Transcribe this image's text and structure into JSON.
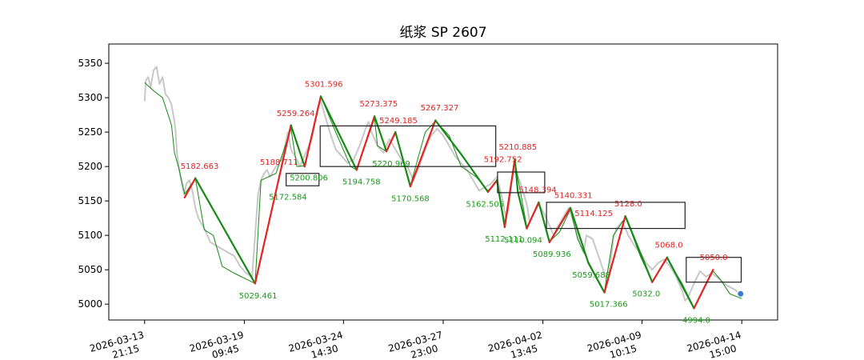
{
  "chart_data": {
    "type": "line",
    "title": "纸浆 SP 2607",
    "ylim": [
      4977,
      5378
    ],
    "yticks": [
      5000,
      5050,
      5100,
      5150,
      5200,
      5250,
      5300,
      5350
    ],
    "xlim": [
      -0.06,
      1.06
    ],
    "xticks": [
      {
        "pos": 0.0,
        "label": [
          "2026-03-13",
          "21:15"
        ]
      },
      {
        "pos": 0.167,
        "label": [
          "2026-03-19",
          "09:45"
        ]
      },
      {
        "pos": 0.333,
        "label": [
          "2026-03-24",
          "14:30"
        ]
      },
      {
        "pos": 0.5,
        "label": [
          "2026-03-27",
          "23:00"
        ]
      },
      {
        "pos": 0.667,
        "label": [
          "2026-04-02",
          "13:45"
        ]
      },
      {
        "pos": 0.833,
        "label": [
          "2026-04-09",
          "10:15"
        ]
      },
      {
        "pos": 1.0,
        "label": [
          "2026-04-14",
          "15:00"
        ]
      }
    ],
    "price_path": [
      [
        0.0,
        5295
      ],
      [
        0.002,
        5325
      ],
      [
        0.006,
        5330
      ],
      [
        0.01,
        5315
      ],
      [
        0.015,
        5340
      ],
      [
        0.02,
        5345
      ],
      [
        0.025,
        5320
      ],
      [
        0.03,
        5330
      ],
      [
        0.035,
        5305
      ],
      [
        0.04,
        5300
      ],
      [
        0.045,
        5290
      ],
      [
        0.05,
        5265
      ],
      [
        0.052,
        5250
      ],
      [
        0.054,
        5220
      ],
      [
        0.058,
        5195
      ],
      [
        0.062,
        5175
      ],
      [
        0.066,
        5160
      ],
      [
        0.07,
        5175
      ],
      [
        0.075,
        5180
      ],
      [
        0.08,
        5165
      ],
      [
        0.085,
        5140
      ],
      [
        0.09,
        5125
      ],
      [
        0.1,
        5110
      ],
      [
        0.11,
        5090
      ],
      [
        0.12,
        5085
      ],
      [
        0.13,
        5080
      ],
      [
        0.14,
        5075
      ],
      [
        0.15,
        5070
      ],
      [
        0.16,
        5055
      ],
      [
        0.17,
        5045
      ],
      [
        0.18,
        5040
      ],
      [
        0.185,
        5100
      ],
      [
        0.19,
        5160
      ],
      [
        0.195,
        5180
      ],
      [
        0.2,
        5190
      ],
      [
        0.205,
        5195
      ],
      [
        0.21,
        5185
      ],
      [
        0.22,
        5200
      ],
      [
        0.23,
        5210
      ],
      [
        0.235,
        5230
      ],
      [
        0.24,
        5250
      ],
      [
        0.245,
        5225
      ],
      [
        0.255,
        5210
      ],
      [
        0.26,
        5200
      ],
      [
        0.27,
        5220
      ],
      [
        0.28,
        5240
      ],
      [
        0.29,
        5285
      ],
      [
        0.295,
        5295
      ],
      [
        0.3,
        5280
      ],
      [
        0.31,
        5250
      ],
      [
        0.32,
        5225
      ],
      [
        0.33,
        5215
      ],
      [
        0.34,
        5205
      ],
      [
        0.35,
        5210
      ],
      [
        0.36,
        5230
      ],
      [
        0.37,
        5255
      ],
      [
        0.375,
        5265
      ],
      [
        0.38,
        5250
      ],
      [
        0.39,
        5230
      ],
      [
        0.4,
        5220
      ],
      [
        0.41,
        5240
      ],
      [
        0.42,
        5225
      ],
      [
        0.43,
        5210
      ],
      [
        0.44,
        5200
      ],
      [
        0.45,
        5180
      ],
      [
        0.46,
        5200
      ],
      [
        0.47,
        5225
      ],
      [
        0.48,
        5245
      ],
      [
        0.49,
        5255
      ],
      [
        0.5,
        5245
      ],
      [
        0.51,
        5230
      ],
      [
        0.52,
        5215
      ],
      [
        0.53,
        5205
      ],
      [
        0.54,
        5195
      ],
      [
        0.55,
        5180
      ],
      [
        0.56,
        5165
      ],
      [
        0.57,
        5170
      ],
      [
        0.58,
        5175
      ],
      [
        0.59,
        5185
      ],
      [
        0.6,
        5150
      ],
      [
        0.605,
        5125
      ],
      [
        0.61,
        5140
      ],
      [
        0.615,
        5180
      ],
      [
        0.62,
        5195
      ],
      [
        0.63,
        5175
      ],
      [
        0.64,
        5145
      ],
      [
        0.645,
        5120
      ],
      [
        0.65,
        5130
      ],
      [
        0.66,
        5145
      ],
      [
        0.67,
        5130
      ],
      [
        0.68,
        5110
      ],
      [
        0.685,
        5100
      ],
      [
        0.69,
        5110
      ],
      [
        0.7,
        5125
      ],
      [
        0.71,
        5140
      ],
      [
        0.72,
        5115
      ],
      [
        0.73,
        5085
      ],
      [
        0.735,
        5075
      ],
      [
        0.74,
        5100
      ],
      [
        0.75,
        5095
      ],
      [
        0.76,
        5070
      ],
      [
        0.77,
        5045
      ],
      [
        0.775,
        5030
      ],
      [
        0.78,
        5060
      ],
      [
        0.785,
        5095
      ],
      [
        0.79,
        5110
      ],
      [
        0.8,
        5120
      ],
      [
        0.81,
        5100
      ],
      [
        0.82,
        5085
      ],
      [
        0.83,
        5075
      ],
      [
        0.84,
        5060
      ],
      [
        0.85,
        5050
      ],
      [
        0.86,
        5060
      ],
      [
        0.87,
        5065
      ],
      [
        0.88,
        5055
      ],
      [
        0.89,
        5040
      ],
      [
        0.9,
        5020
      ],
      [
        0.905,
        5005
      ],
      [
        0.91,
        5010
      ],
      [
        0.92,
        5030
      ],
      [
        0.93,
        5048
      ],
      [
        0.94,
        5040
      ],
      [
        0.95,
        5045
      ],
      [
        0.96,
        5038
      ],
      [
        0.97,
        5030
      ],
      [
        0.98,
        5025
      ],
      [
        0.99,
        5020
      ],
      [
        1.0,
        5012
      ]
    ],
    "zigzag": [
      {
        "x": 0.067,
        "y": 5155
      },
      {
        "x": 0.085,
        "y": 5183
      },
      {
        "x": 0.185,
        "y": 5030
      },
      {
        "x": 0.245,
        "y": 5260
      },
      {
        "x": 0.268,
        "y": 5200
      },
      {
        "x": 0.295,
        "y": 5302
      },
      {
        "x": 0.355,
        "y": 5195
      },
      {
        "x": 0.385,
        "y": 5273
      },
      {
        "x": 0.405,
        "y": 5222
      },
      {
        "x": 0.42,
        "y": 5250
      },
      {
        "x": 0.445,
        "y": 5171
      },
      {
        "x": 0.487,
        "y": 5267
      },
      {
        "x": 0.53,
        "y": 5218
      },
      {
        "x": 0.575,
        "y": 5163
      },
      {
        "x": 0.59,
        "y": 5180
      },
      {
        "x": 0.603,
        "y": 5112
      },
      {
        "x": 0.62,
        "y": 5211
      },
      {
        "x": 0.625,
        "y": 5163
      },
      {
        "x": 0.64,
        "y": 5110
      },
      {
        "x": 0.66,
        "y": 5148
      },
      {
        "x": 0.678,
        "y": 5090
      },
      {
        "x": 0.713,
        "y": 5140
      },
      {
        "x": 0.743,
        "y": 5060
      },
      {
        "x": 0.77,
        "y": 5017
      },
      {
        "x": 0.805,
        "y": 5128
      },
      {
        "x": 0.85,
        "y": 5032
      },
      {
        "x": 0.875,
        "y": 5068
      },
      {
        "x": 0.92,
        "y": 4994
      },
      {
        "x": 0.952,
        "y": 5050
      }
    ],
    "trend_line": [
      [
        0.0,
        5322
      ],
      [
        0.015,
        5310
      ],
      [
        0.03,
        5300
      ],
      [
        0.045,
        5260
      ],
      [
        0.05,
        5220
      ],
      [
        0.058,
        5195
      ],
      [
        0.067,
        5160
      ],
      [
        0.085,
        5183
      ],
      [
        0.1,
        5108
      ],
      [
        0.115,
        5100
      ],
      [
        0.13,
        5055
      ],
      [
        0.15,
        5045
      ],
      [
        0.185,
        5030
      ],
      [
        0.195,
        5180
      ],
      [
        0.22,
        5190
      ],
      [
        0.245,
        5255
      ],
      [
        0.255,
        5200
      ],
      [
        0.268,
        5201
      ],
      [
        0.295,
        5302
      ],
      [
        0.32,
        5250
      ],
      [
        0.345,
        5200
      ],
      [
        0.355,
        5195
      ],
      [
        0.385,
        5270
      ],
      [
        0.39,
        5230
      ],
      [
        0.405,
        5222
      ],
      [
        0.42,
        5248
      ],
      [
        0.445,
        5172
      ],
      [
        0.47,
        5250
      ],
      [
        0.487,
        5266
      ],
      [
        0.51,
        5245
      ],
      [
        0.53,
        5200
      ],
      [
        0.555,
        5185
      ],
      [
        0.575,
        5165
      ],
      [
        0.59,
        5178
      ],
      [
        0.603,
        5118
      ],
      [
        0.62,
        5208
      ],
      [
        0.64,
        5112
      ],
      [
        0.66,
        5146
      ],
      [
        0.678,
        5091
      ],
      [
        0.695,
        5105
      ],
      [
        0.713,
        5138
      ],
      [
        0.725,
        5095
      ],
      [
        0.743,
        5062
      ],
      [
        0.77,
        5018
      ],
      [
        0.785,
        5100
      ],
      [
        0.805,
        5126
      ],
      [
        0.815,
        5105
      ],
      [
        0.83,
        5070
      ],
      [
        0.85,
        5033
      ],
      [
        0.875,
        5066
      ],
      [
        0.9,
        5030
      ],
      [
        0.92,
        4995
      ],
      [
        0.952,
        5048
      ],
      [
        0.965,
        5035
      ],
      [
        0.98,
        5015
      ],
      [
        1.0,
        5008
      ]
    ],
    "annotations": [
      {
        "x": 0.092,
        "y": 5182.663,
        "label": "5182.663",
        "color": "#e32222",
        "pos": "above"
      },
      {
        "x": 0.19,
        "y": 5029.461,
        "label": "5029.461",
        "color": "#189b18",
        "pos": "below"
      },
      {
        "x": 0.225,
        "y": 5188.711,
        "label": "5188.711",
        "color": "#e32222",
        "pos": "above"
      },
      {
        "x": 0.24,
        "y": 5172.584,
        "label": "5172.584",
        "color": "#189b18",
        "pos": "below"
      },
      {
        "x": 0.253,
        "y": 5259.264,
        "label": "5259.264",
        "color": "#e32222",
        "pos": "above"
      },
      {
        "x": 0.275,
        "y": 5200.806,
        "label": "5200.806",
        "color": "#189b18",
        "pos": "below"
      },
      {
        "x": 0.3,
        "y": 5301.596,
        "label": "5301.596",
        "color": "#e32222",
        "pos": "above"
      },
      {
        "x": 0.363,
        "y": 5194.758,
        "label": "5194.758",
        "color": "#189b18",
        "pos": "below"
      },
      {
        "x": 0.392,
        "y": 5273.375,
        "label": "5273.375",
        "color": "#e32222",
        "pos": "above"
      },
      {
        "x": 0.425,
        "y": 5249.185,
        "label": "5249.185",
        "color": "#e32222",
        "pos": "above"
      },
      {
        "x": 0.413,
        "y": 5220.969,
        "label": "5220.969",
        "color": "#189b18",
        "pos": "below"
      },
      {
        "x": 0.445,
        "y": 5170.568,
        "label": "5170.568",
        "color": "#189b18",
        "pos": "below"
      },
      {
        "x": 0.494,
        "y": 5267.327,
        "label": "5267.327",
        "color": "#e32222",
        "pos": "above"
      },
      {
        "x": 0.6,
        "y": 5192.752,
        "label": "5192.752",
        "color": "#e32222",
        "pos": "above"
      },
      {
        "x": 0.57,
        "y": 5162.505,
        "label": "5162.505",
        "color": "#189b18",
        "pos": "below"
      },
      {
        "x": 0.625,
        "y": 5210.885,
        "label": "5210.885",
        "color": "#e32222",
        "pos": "above"
      },
      {
        "x": 0.602,
        "y": 5112.111,
        "label": "5112.111",
        "color": "#189b18",
        "pos": "below"
      },
      {
        "x": 0.658,
        "y": 5148.394,
        "label": "5148.394",
        "color": "#e32222",
        "pos": "above"
      },
      {
        "x": 0.634,
        "y": 5110.094,
        "label": "5110.094",
        "color": "#189b18",
        "pos": "below"
      },
      {
        "x": 0.718,
        "y": 5140.331,
        "label": "5140.331",
        "color": "#e32222",
        "pos": "above"
      },
      {
        "x": 0.682,
        "y": 5089.936,
        "label": "5089.936",
        "color": "#189b18",
        "pos": "below"
      },
      {
        "x": 0.752,
        "y": 5114.125,
        "label": "5114.125",
        "color": "#e32222",
        "pos": "above"
      },
      {
        "x": 0.748,
        "y": 5059.688,
        "label": "5059.688",
        "color": "#189b18",
        "pos": "below"
      },
      {
        "x": 0.81,
        "y": 5128.0,
        "label": "5128.0",
        "color": "#e32222",
        "pos": "above"
      },
      {
        "x": 0.777,
        "y": 5017.366,
        "label": "5017.366",
        "color": "#189b18",
        "pos": "below"
      },
      {
        "x": 0.878,
        "y": 5068.0,
        "label": "5068.0",
        "color": "#e32222",
        "pos": "above"
      },
      {
        "x": 0.84,
        "y": 5032.0,
        "label": "5032.0",
        "color": "#189b18",
        "pos": "below"
      },
      {
        "x": 0.953,
        "y": 5050.0,
        "label": "5050.0",
        "color": "#e32222",
        "pos": "above"
      },
      {
        "x": 0.924,
        "y": 4994.0,
        "label": "4994.0",
        "color": "#189b18",
        "pos": "below"
      }
    ],
    "boxes": [
      {
        "x0": 0.237,
        "x1": 0.292,
        "y0": 5172,
        "y1": 5190
      },
      {
        "x0": 0.294,
        "x1": 0.588,
        "y0": 5200,
        "y1": 5259
      },
      {
        "x0": 0.591,
        "x1": 0.67,
        "y0": 5162,
        "y1": 5192
      },
      {
        "x0": 0.673,
        "x1": 0.905,
        "y0": 5110,
        "y1": 5148
      },
      {
        "x0": 0.907,
        "x1": 0.999,
        "y0": 5032,
        "y1": 5068
      }
    ],
    "grid": false,
    "colors": {
      "price": "#c8c8c8",
      "trend": "#168a16",
      "up": "#e32222",
      "down": "#168a16",
      "marker": "#3a7bd5",
      "box": "#222222"
    }
  }
}
